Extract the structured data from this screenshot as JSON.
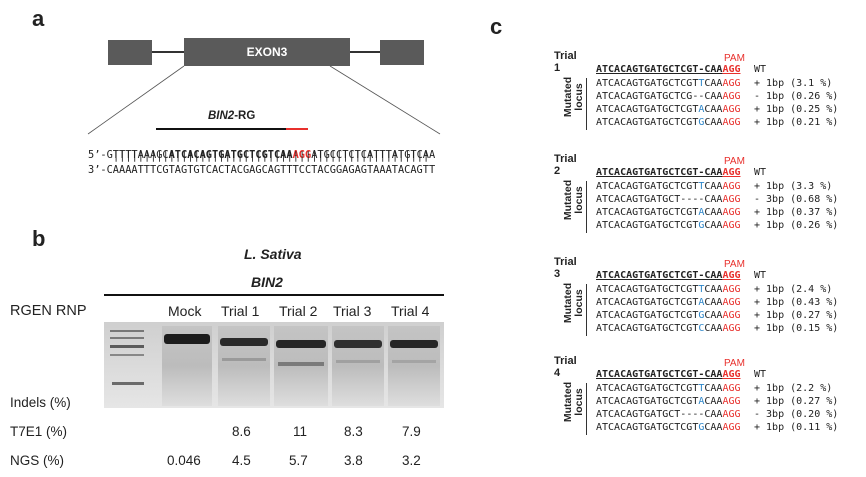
{
  "panels": {
    "a": "a",
    "b": "b",
    "c": "c"
  },
  "panel_a": {
    "exon_label": "EXON3",
    "guide_label_italic": "BIN2",
    "guide_label_suffix": "-RG",
    "top_strand": {
      "prefix": "5’-GTTTTAAAGC",
      "target": "ATCACAGTGATGCTCGTCAA",
      "pam": "AGG",
      "suffix": "ATGCCTCTCATTTATGTCAA"
    },
    "pairs": "|||||||||||||||||||||||||||||||||||||||||||||||||||",
    "bottom_strand": "3’-CAAAATTTCGTAGTGTCACTACGAGCAGTTTCCTACGGAGAGTAAATACAGTT"
  },
  "panel_b": {
    "species": "L. Sativa",
    "gene": "BIN2",
    "rgen_label": "RGEN RNP",
    "lanes": [
      "Mock",
      "Trial 1",
      "Trial 2",
      "Trial 3",
      "Trial 4"
    ],
    "indels_label": "Indels (%)",
    "t7e1_label": "T7E1 (%)",
    "t7e1_values": [
      "",
      "8.6",
      "11",
      "8.3",
      "7.9"
    ],
    "ngs_label": "NGS (%)",
    "ngs_values": [
      "0.046",
      "4.5",
      "5.7",
      "3.8",
      "3.2"
    ]
  },
  "panel_c": {
    "pam_label": "PAM",
    "wt_tag": "WT",
    "mutated_label_line1": "Mutated",
    "mutated_label_line2": "locus",
    "trials": [
      {
        "title": "Trial 1",
        "wt": {
          "prefix": "ATCACAGTGATGCTCGT-CAA",
          "pam": "AGG"
        },
        "rows": [
          {
            "pre": "ATCACAGTGATGCTCGT",
            "ins": "T",
            "post": "CAA",
            "pam": "AGG",
            "note": "+ 1bp (3.1 %)"
          },
          {
            "pre": "ATCACAGTGATGCTCG-",
            "ins": "",
            "post": "-CAA",
            "pam": "AGG",
            "note": "- 1bp (0.26 %)"
          },
          {
            "pre": "ATCACAGTGATGCTCGT",
            "ins": "A",
            "post": "CAA",
            "pam": "AGG",
            "note": "+ 1bp (0.25 %)"
          },
          {
            "pre": "ATCACAGTGATGCTCGT",
            "ins": "G",
            "post": "CAA",
            "pam": "AGG",
            "note": "+ 1bp (0.21 %)"
          }
        ]
      },
      {
        "title": "Trial 2",
        "wt": {
          "prefix": "ATCACAGTGATGCTCGT-CAA",
          "pam": "AGG"
        },
        "rows": [
          {
            "pre": "ATCACAGTGATGCTCGT",
            "ins": "T",
            "post": "CAA",
            "pam": "AGG",
            "note": "+ 1bp (3.3 %)"
          },
          {
            "pre": "ATCACAGTGATGCT",
            "ins": "",
            "post": "----CAA",
            "pam": "AGG",
            "note": "- 3bp (0.68 %)"
          },
          {
            "pre": "ATCACAGTGATGCTCGT",
            "ins": "A",
            "post": "CAA",
            "pam": "AGG",
            "note": "+ 1bp (0.37 %)"
          },
          {
            "pre": "ATCACAGTGATGCTCGT",
            "ins": "G",
            "post": "CAA",
            "pam": "AGG",
            "note": "+ 1bp (0.26 %)"
          }
        ]
      },
      {
        "title": "Trial 3",
        "wt": {
          "prefix": "ATCACAGTGATGCTCGT-CAA",
          "pam": "AGG"
        },
        "rows": [
          {
            "pre": "ATCACAGTGATGCTCGT",
            "ins": "T",
            "post": "CAA",
            "pam": "AGG",
            "note": "+ 1bp (2.4 %)"
          },
          {
            "pre": "ATCACAGTGATGCTCGT",
            "ins": "A",
            "post": "CAA",
            "pam": "AGG",
            "note": "+ 1bp (0.43 %)"
          },
          {
            "pre": "ATCACAGTGATGCTCGT",
            "ins": "G",
            "post": "CAA",
            "pam": "AGG",
            "note": "+ 1bp (0.27 %)"
          },
          {
            "pre": "ATCACAGTGATGCTCGT",
            "ins": "C",
            "post": "CAA",
            "pam": "AGG",
            "note": "+ 1bp (0.15 %)"
          }
        ]
      },
      {
        "title": "Trial 4",
        "wt": {
          "prefix": "ATCACAGTGATGCTCGT-CAA",
          "pam": "AGG"
        },
        "rows": [
          {
            "pre": "ATCACAGTGATGCTCGT",
            "ins": "T",
            "post": "CAA",
            "pam": "AGG",
            "note": "+ 1bp (2.2 %)"
          },
          {
            "pre": "ATCACAGTGATGCTCGT",
            "ins": "A",
            "post": "CAA",
            "pam": "AGG",
            "note": "+ 1bp (0.27 %)"
          },
          {
            "pre": "ATCACAGTGATGCT",
            "ins": "",
            "post": "----CAA",
            "pam": "AGG",
            "note": "- 3bp (0.20 %)"
          },
          {
            "pre": "ATCACAGTGATGCTCGT",
            "ins": "G",
            "post": "CAA",
            "pam": "AGG",
            "note": "+ 1bp (0.11 %)"
          }
        ]
      }
    ]
  },
  "colors": {
    "pam_red": "#e8302c",
    "insert_blue": "#2e86c9",
    "gene_box": "#5a5a5a"
  }
}
